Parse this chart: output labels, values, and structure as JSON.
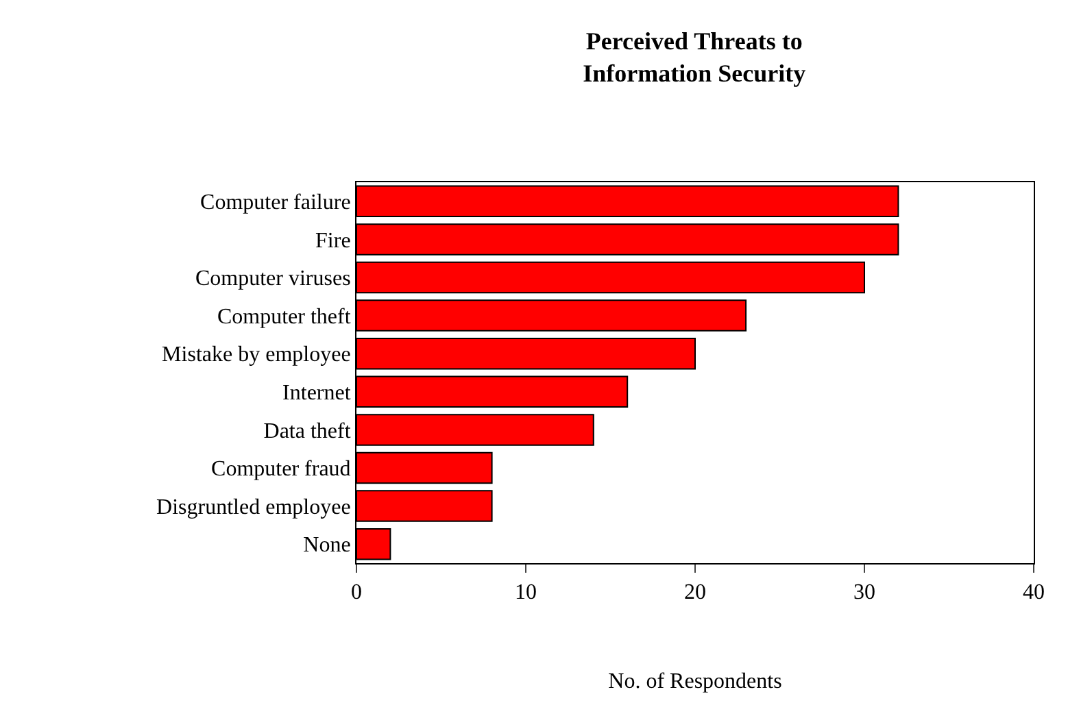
{
  "chart_data": {
    "type": "bar",
    "orientation": "horizontal",
    "title": "Perceived Threats to\nInformation Security",
    "xlabel": "No. of Respondents",
    "categories": [
      "Computer failure",
      "Fire",
      "Computer viruses",
      "Computer theft",
      "Mistake by employee",
      "Internet",
      "Data theft",
      "Computer fraud",
      "Disgruntled employee",
      "None"
    ],
    "values": [
      32,
      32,
      30,
      23,
      20,
      16,
      14,
      8,
      8,
      2
    ],
    "color": "#ff0000",
    "xlim": [
      0,
      40
    ],
    "xticks": [
      0,
      10,
      20,
      30,
      40
    ]
  }
}
